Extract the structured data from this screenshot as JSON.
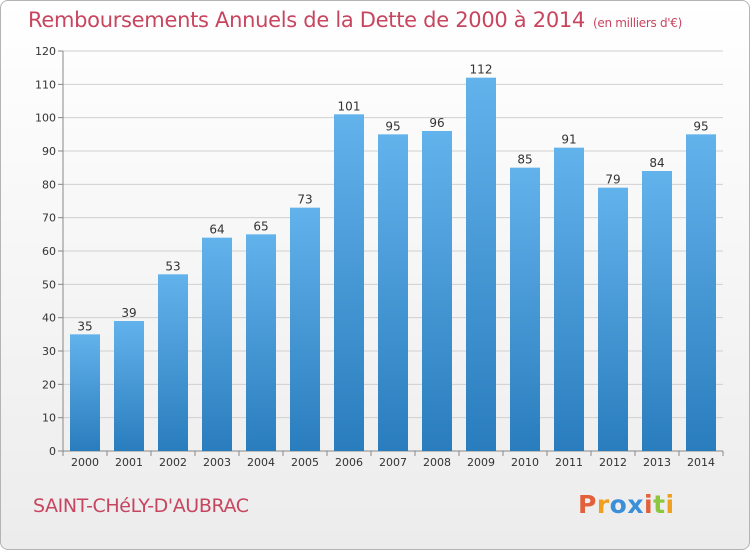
{
  "title": "Remboursements Annuels de la Dette de 2000 à 2014",
  "subtitle": "(en milliers d'€)",
  "footer": {
    "city": "SAINT-CHéLY-D'AUBRAC",
    "logo_text": "Proxiti"
  },
  "colors": {
    "title": "#c8455f",
    "bar_top": "#62b2ec",
    "bar_bottom": "#2a7dbd",
    "grid": "#d0d0d0",
    "logo": [
      "#e2603a",
      "#f0a020",
      "#3b8fd8",
      "#3b8fd8",
      "#e2603a",
      "#8dc63f",
      "#f0a020"
    ]
  },
  "chart_data": {
    "type": "bar",
    "categories": [
      "2000",
      "2001",
      "2002",
      "2003",
      "2004",
      "2005",
      "2006",
      "2007",
      "2008",
      "2009",
      "2010",
      "2011",
      "2012",
      "2013",
      "2014"
    ],
    "values": [
      35,
      39,
      53,
      64,
      65,
      73,
      101,
      95,
      96,
      112,
      85,
      91,
      79,
      84,
      95
    ],
    "title": "Remboursements Annuels de la Dette de 2000 à 2014",
    "subtitle": "(en milliers d'€)",
    "ylim": [
      0,
      120
    ],
    "yticks": [
      0,
      10,
      20,
      30,
      40,
      50,
      60,
      70,
      80,
      90,
      100,
      110,
      120
    ],
    "grid": true,
    "data_labels": true
  }
}
